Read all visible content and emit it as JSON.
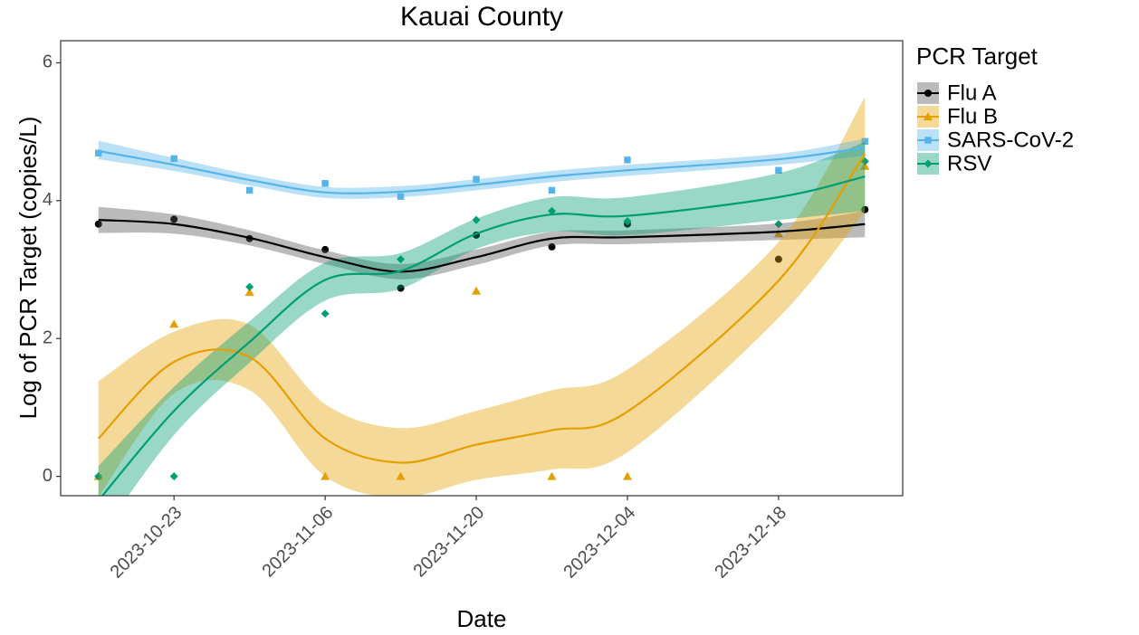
{
  "chart_data": {
    "type": "line",
    "title": "Kauai County",
    "x_label": "Date",
    "y_label": "Log of PCR Target (copies/L)",
    "legend_title": "PCR Target",
    "x": [
      "2023-10-16",
      "2023-10-23",
      "2023-10-30",
      "2023-11-06",
      "2023-11-13",
      "2023-11-20",
      "2023-11-27",
      "2023-12-04",
      "2023-12-18",
      "2023-12-26"
    ],
    "xlim": [
      "2023-10-12T12:00",
      "2023-12-29T12:00"
    ],
    "xticks": [
      "2023-10-23",
      "2023-11-06",
      "2023-11-20",
      "2023-12-04",
      "2023-12-18"
    ],
    "ylim": [
      -0.28,
      6.32
    ],
    "yticks": [
      0,
      2,
      4,
      6
    ],
    "grid": false,
    "legend": "right",
    "series": [
      {
        "name": "Flu A",
        "color": "#000000",
        "band_color": "#555555",
        "shape": "circle",
        "values": [
          3.66,
          3.73,
          3.45,
          3.29,
          2.73,
          3.5,
          3.33,
          3.66,
          3.15,
          3.87
        ],
        "fit": [
          3.72,
          3.66,
          3.46,
          3.18,
          2.97,
          3.18,
          3.45,
          3.47,
          3.55,
          3.66
        ],
        "fit_lower": [
          3.53,
          3.52,
          3.35,
          3.08,
          2.86,
          3.07,
          3.35,
          3.37,
          3.43,
          3.47
        ],
        "fit_upper": [
          3.91,
          3.8,
          3.57,
          3.28,
          3.08,
          3.29,
          3.55,
          3.57,
          3.67,
          3.85
        ]
      },
      {
        "name": "Flu B",
        "color": "#E69F00",
        "band_color": "#E69F00",
        "shape": "triangle",
        "values": [
          0,
          2.21,
          2.67,
          0,
          0,
          2.69,
          0,
          0,
          3.52,
          4.5
        ],
        "fit": [
          0.55,
          1.66,
          1.73,
          0.55,
          0.2,
          0.46,
          0.67,
          0.94,
          2.84,
          4.68
        ],
        "fit_lower": [
          -0.3,
          1.2,
          1.25,
          0,
          -0.3,
          -0.05,
          0.1,
          0.35,
          2.3,
          3.85
        ],
        "fit_upper": [
          1.38,
          2.1,
          2.2,
          1.05,
          0.7,
          0.95,
          1.25,
          1.55,
          3.4,
          5.5
        ]
      },
      {
        "name": "SARS-CoV-2",
        "color": "#56B4E9",
        "band_color": "#56B4E9",
        "shape": "square",
        "values": [
          4.69,
          4.61,
          4.15,
          4.25,
          4.06,
          4.31,
          4.15,
          4.59,
          4.44,
          4.86
        ],
        "fit": [
          4.72,
          4.52,
          4.3,
          4.12,
          4.13,
          4.23,
          4.35,
          4.44,
          4.6,
          4.77
        ],
        "fit_lower": [
          4.6,
          4.43,
          4.22,
          4.04,
          4.05,
          4.15,
          4.27,
          4.36,
          4.52,
          4.65
        ],
        "fit_upper": [
          4.87,
          4.62,
          4.38,
          4.2,
          4.21,
          4.31,
          4.43,
          4.52,
          4.68,
          4.9
        ]
      },
      {
        "name": "RSV",
        "color": "#009E73",
        "band_color": "#009E73",
        "shape": "diamond",
        "values": [
          0,
          0,
          2.75,
          2.36,
          3.15,
          3.72,
          3.85,
          3.7,
          3.66,
          4.57
        ],
        "fit": [
          -0.35,
          0.95,
          1.95,
          2.85,
          2.98,
          3.52,
          3.8,
          3.78,
          4.05,
          4.35
        ],
        "fit_lower": [
          -0.9,
          0.6,
          1.65,
          2.55,
          2.72,
          3.3,
          3.55,
          3.5,
          3.72,
          3.85
        ],
        "fit_upper": [
          0.15,
          1.3,
          2.25,
          3.1,
          3.24,
          3.74,
          4.05,
          4.05,
          4.4,
          4.85
        ]
      }
    ]
  }
}
